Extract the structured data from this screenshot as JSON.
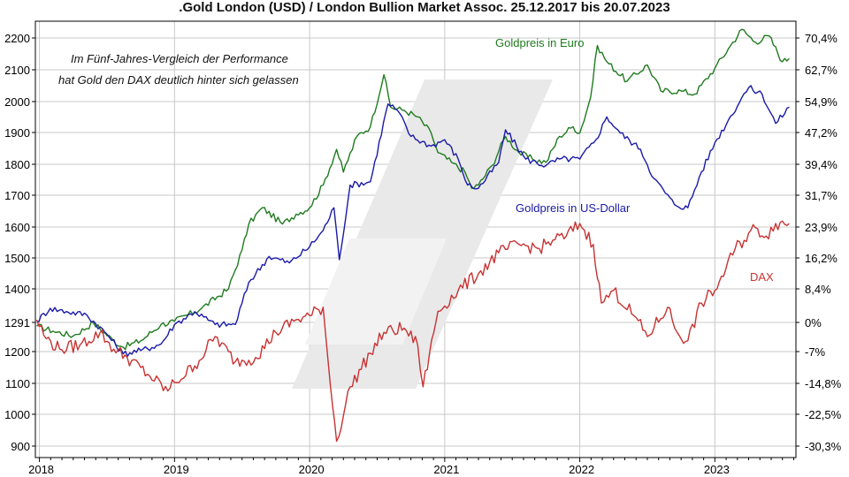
{
  "chart_data": {
    "type": "line",
    "title": ".Gold London (USD) / London Bullion Market Assoc. 25.12.2017 bis 20.07.2023",
    "annotation": [
      "Im Fünf-Jahres-Vergleich der Performance",
      "hat Gold den DAX deutlich hinter sich gelassen"
    ],
    "x_ticks": [
      "2018",
      "2019",
      "2020",
      "2021",
      "2022",
      "2023"
    ],
    "left_axis": {
      "ticks": [
        900,
        1000,
        1100,
        1200,
        "1291",
        1400,
        1500,
        1600,
        1700,
        1800,
        1900,
        2000,
        2100,
        2200
      ],
      "ylim": [
        880,
        2225
      ]
    },
    "right_axis": {
      "ticks": [
        "-30,3%",
        "-22,5%",
        "-14,8%",
        "-7%",
        "0%",
        "8,4%",
        "16,2%",
        "23,9%",
        "31,7%",
        "39,4%",
        "47,2%",
        "54,9%",
        "62,7%",
        "70,4%"
      ],
      "ylim": [
        -31.9,
        72.3
      ]
    },
    "grid": true,
    "series": [
      {
        "name": "Goldpreis in Euro",
        "color": "#1f7a1f",
        "x": [
          2017.98,
          2018.1,
          2018.25,
          2018.4,
          2018.55,
          2018.62,
          2018.75,
          2018.9,
          2019.0,
          2019.2,
          2019.4,
          2019.5,
          2019.55,
          2019.65,
          2019.8,
          2019.9,
          2020.0,
          2020.1,
          2020.2,
          2020.25,
          2020.35,
          2020.45,
          2020.55,
          2020.6,
          2020.7,
          2020.8,
          2020.9,
          2020.95,
          2021.05,
          2021.15,
          2021.2,
          2021.25,
          2021.35,
          2021.45,
          2021.55,
          2021.65,
          2021.75,
          2021.85,
          2021.95,
          2022.0,
          2022.08,
          2022.13,
          2022.2,
          2022.35,
          2022.5,
          2022.6,
          2022.75,
          2022.85,
          2023.0,
          2023.1,
          2023.2,
          2023.3,
          2023.4,
          2023.5,
          2023.55
        ],
        "values": [
          1285,
          1270,
          1255,
          1295,
          1240,
          1220,
          1240,
          1290,
          1300,
          1340,
          1400,
          1520,
          1600,
          1650,
          1600,
          1630,
          1650,
          1720,
          1830,
          1760,
          1870,
          1900,
          2060,
          1960,
          1950,
          1930,
          1880,
          1820,
          1790,
          1760,
          1710,
          1720,
          1780,
          1870,
          1820,
          1800,
          1790,
          1870,
          1900,
          1880,
          1990,
          2150,
          2100,
          2040,
          2090,
          2010,
          2010,
          2000,
          2080,
          2140,
          2200,
          2160,
          2180,
          2100,
          2110
        ]
      },
      {
        "name": "Goldpreis in US-Dollar",
        "color": "#1a1aa8",
        "x": [
          2017.98,
          2018.08,
          2018.2,
          2018.35,
          2018.5,
          2018.62,
          2018.75,
          2018.9,
          2019.0,
          2019.15,
          2019.3,
          2019.45,
          2019.55,
          2019.7,
          2019.85,
          2020.0,
          2020.1,
          2020.18,
          2020.22,
          2020.3,
          2020.45,
          2020.58,
          2020.65,
          2020.75,
          2020.9,
          2021.0,
          2021.1,
          2021.17,
          2021.25,
          2021.4,
          2021.45,
          2021.6,
          2021.75,
          2021.85,
          2022.0,
          2022.12,
          2022.2,
          2022.3,
          2022.45,
          2022.55,
          2022.7,
          2022.8,
          2022.9,
          2023.0,
          2023.1,
          2023.2,
          2023.25,
          2023.35,
          2023.45,
          2023.55
        ],
        "values": [
          1300,
          1340,
          1330,
          1320,
          1260,
          1200,
          1210,
          1230,
          1290,
          1330,
          1290,
          1290,
          1420,
          1500,
          1480,
          1530,
          1580,
          1650,
          1490,
          1720,
          1730,
          1970,
          1950,
          1870,
          1840,
          1860,
          1800,
          1720,
          1710,
          1790,
          1890,
          1800,
          1780,
          1800,
          1800,
          1860,
          1930,
          1880,
          1830,
          1740,
          1660,
          1650,
          1760,
          1850,
          1920,
          1990,
          2020,
          2000,
          1910,
          1960
        ]
      },
      {
        "name": "DAX",
        "color": "#c83232",
        "x": [
          2017.98,
          2018.05,
          2018.15,
          2018.3,
          2018.45,
          2018.55,
          2018.65,
          2018.8,
          2018.95,
          2019.0,
          2019.15,
          2019.3,
          2019.45,
          2019.6,
          2019.75,
          2019.9,
          2020.0,
          2020.1,
          2020.14,
          2020.2,
          2020.3,
          2020.45,
          2020.55,
          2020.7,
          2020.8,
          2020.84,
          2020.95,
          2021.1,
          2021.25,
          2021.4,
          2021.55,
          2021.7,
          2021.8,
          2021.9,
          2022.0,
          2022.1,
          2022.16,
          2022.25,
          2022.4,
          2022.5,
          2022.65,
          2022.72,
          2022.8,
          2022.9,
          2023.0,
          2023.08,
          2023.15,
          2023.3,
          2023.38,
          2023.45,
          2023.55
        ],
        "values": [
          1.0,
          -3.5,
          -6.0,
          -5.0,
          -2.0,
          -6.0,
          -8.0,
          -12.0,
          -16.0,
          -14.0,
          -10.0,
          -3.0,
          -9.0,
          -8.0,
          -2.0,
          1.0,
          2.0,
          4.0,
          -10.0,
          -28.0,
          -15.0,
          -7.0,
          -2.0,
          -1.0,
          -5.0,
          -15.0,
          3.0,
          8.0,
          12.0,
          17.0,
          19.0,
          18.0,
          20.0,
          21.0,
          24.0,
          19.0,
          5.0,
          8.0,
          2.0,
          -3.0,
          4.0,
          -2.0,
          -4.0,
          5.0,
          8.0,
          13.0,
          18.0,
          23.0,
          21.0,
          24.0,
          24.0
        ]
      }
    ],
    "series_labels": [
      "Goldpreis in Euro",
      "Goldpreis in US-Dollar",
      "DAX"
    ]
  }
}
